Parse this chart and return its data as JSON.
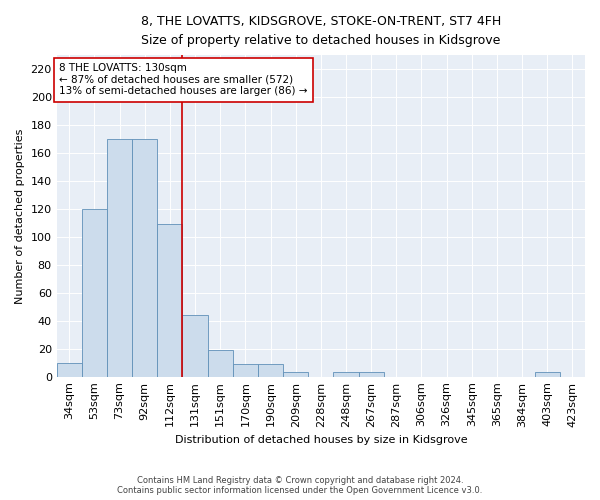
{
  "title": "8, THE LOVATTS, KIDSGROVE, STOKE-ON-TRENT, ST7 4FH",
  "subtitle": "Size of property relative to detached houses in Kidsgrove",
  "xlabel": "Distribution of detached houses by size in Kidsgrove",
  "ylabel": "Number of detached properties",
  "footer_line1": "Contains HM Land Registry data © Crown copyright and database right 2024.",
  "footer_line2": "Contains public sector information licensed under the Open Government Licence v3.0.",
  "annotation_line1": "8 THE LOVATTS: 130sqm",
  "annotation_line2": "← 87% of detached houses are smaller (572)",
  "annotation_line3": "13% of semi-detached houses are larger (86) →",
  "bar_color": "#ccdcec",
  "bar_edge_color": "#6090b8",
  "vline_color": "#cc0000",
  "annotation_box_edge_color": "#cc0000",
  "background_color": "#e8eef6",
  "categories": [
    "34sqm",
    "53sqm",
    "73sqm",
    "92sqm",
    "112sqm",
    "131sqm",
    "151sqm",
    "170sqm",
    "190sqm",
    "209sqm",
    "228sqm",
    "248sqm",
    "267sqm",
    "287sqm",
    "306sqm",
    "326sqm",
    "345sqm",
    "365sqm",
    "384sqm",
    "403sqm",
    "423sqm"
  ],
  "values": [
    10,
    120,
    170,
    170,
    109,
    44,
    19,
    9,
    9,
    3,
    0,
    3,
    3,
    0,
    0,
    0,
    0,
    0,
    0,
    3,
    0
  ],
  "vline_x": 4.5,
  "ylim": [
    0,
    230
  ],
  "yticks": [
    0,
    20,
    40,
    60,
    80,
    100,
    120,
    140,
    160,
    180,
    200,
    220
  ],
  "figsize": [
    6.0,
    5.0
  ],
  "dpi": 100
}
